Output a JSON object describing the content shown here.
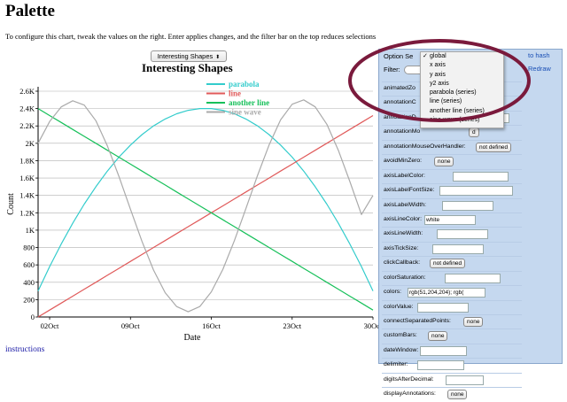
{
  "page": {
    "title": "Palette",
    "description": "To configure this chart, tweak the values on the right. Enter applies changes, and the filter bar on the top reduces selections",
    "instructions_link": "instructions"
  },
  "chart_selector": {
    "selected": "Interesting Shapes"
  },
  "panel": {
    "option_set_label": "Option Se",
    "filter_label": "Filter:",
    "to_hash": "to hash",
    "redraw": "Redraw",
    "rows": [
      {
        "name": "animatedZo",
        "field": "",
        "type": "none"
      },
      {
        "name": "annotationC",
        "field": "",
        "type": "none"
      },
      {
        "name": "annotationD",
        "field": "",
        "type": "field"
      },
      {
        "name": "annotationMo",
        "field": "d",
        "type": "button"
      },
      {
        "name": "annotationMouseOverHandler:",
        "field": "not defined",
        "type": "button"
      },
      {
        "name": "avoidMinZero:",
        "field": "none",
        "type": "button"
      },
      {
        "name": "axisLabelColor:",
        "field": "",
        "type": "field"
      },
      {
        "name": "axisLabelFontSize:",
        "field": "",
        "type": "field"
      },
      {
        "name": "axisLabelWidth:",
        "field": "",
        "type": "field"
      },
      {
        "name": "axisLineColor:",
        "field": "white",
        "type": "field"
      },
      {
        "name": "axisLineWidth:",
        "field": "",
        "type": "field"
      },
      {
        "name": "axisTickSize:",
        "field": "",
        "type": "field"
      },
      {
        "name": "clickCallback:",
        "field": "not defined",
        "type": "button"
      },
      {
        "name": "colorSaturation:",
        "field": "",
        "type": "field"
      },
      {
        "name": "colors:",
        "field": "rgb(51,204,204); rgb(",
        "type": "field"
      },
      {
        "name": "colorValue:",
        "field": "",
        "type": "field"
      },
      {
        "name": "connectSeparatedPoints:",
        "field": "none",
        "type": "button"
      },
      {
        "name": "customBars:",
        "field": "none",
        "type": "button"
      },
      {
        "name": "dateWindow:",
        "field": "",
        "type": "field"
      },
      {
        "name": "delimiter:",
        "field": "",
        "type": "field"
      },
      {
        "name": "digitsAfterDecimal:",
        "field": "",
        "type": "field"
      },
      {
        "name": "displayAnnotations:",
        "field": "none",
        "type": "button"
      }
    ]
  },
  "option_menu": {
    "items": [
      {
        "label": "global",
        "checked": true
      },
      {
        "label": "x axis",
        "checked": false
      },
      {
        "label": "y axis",
        "checked": false
      },
      {
        "label": "y2 axis",
        "checked": false
      },
      {
        "label": "parabola (series)",
        "checked": false
      },
      {
        "label": "line (series)",
        "checked": false
      },
      {
        "label": "another line (series)",
        "checked": false
      },
      {
        "label": "sine wave (series)",
        "checked": false
      }
    ],
    "check_glyph": "✓"
  },
  "colors": {
    "parabola": "#33cccc",
    "line": "#e05a5a",
    "another_line": "#17c05a",
    "sine_wave": "#aaaaaa",
    "highlight_ellipse": "#7a1a3c",
    "link": "#1a4fb5"
  },
  "chart_data": {
    "type": "line",
    "title": "Interesting Shapes",
    "xlabel": "Date",
    "ylabel": "Count",
    "x_ticks": [
      "02Oct",
      "09Oct",
      "16Oct",
      "23Oct",
      "30Oct"
    ],
    "y_ticks": [
      "0",
      "200",
      "400",
      "600",
      "800",
      "1K",
      "1.2K",
      "1.4K",
      "1.6K",
      "1.8K",
      "2K",
      "2.2K",
      "2.4K",
      "2.6K"
    ],
    "ylim": [
      0,
      2600
    ],
    "xlim": [
      1,
      30
    ],
    "legend_position": "top-right",
    "x": [
      1,
      2,
      3,
      4,
      5,
      6,
      7,
      8,
      9,
      10,
      11,
      12,
      13,
      14,
      15,
      16,
      17,
      18,
      19,
      20,
      21,
      22,
      23,
      24,
      25,
      26,
      27,
      28,
      29,
      30
    ],
    "series": [
      {
        "name": "parabola",
        "values": [
          300,
          580,
          840,
          1080,
          1300,
          1500,
          1680,
          1840,
          1980,
          2100,
          2200,
          2280,
          2340,
          2380,
          2400,
          2400,
          2380,
          2340,
          2280,
          2200,
          2100,
          1980,
          1840,
          1680,
          1500,
          1300,
          1080,
          840,
          580,
          300
        ]
      },
      {
        "name": "line",
        "values": [
          0,
          80,
          160,
          240,
          320,
          400,
          480,
          560,
          640,
          720,
          800,
          880,
          960,
          1040,
          1120,
          1200,
          1280,
          1360,
          1440,
          1520,
          1600,
          1680,
          1760,
          1840,
          1920,
          2000,
          2080,
          2160,
          2240,
          2320
        ]
      },
      {
        "name": "another line",
        "values": [
          2400,
          2320,
          2240,
          2160,
          2080,
          2000,
          1920,
          1840,
          1760,
          1680,
          1600,
          1520,
          1440,
          1360,
          1280,
          1200,
          1120,
          1040,
          960,
          880,
          800,
          720,
          640,
          560,
          480,
          400,
          320,
          240,
          160,
          80
        ]
      },
      {
        "name": "sine wave",
        "values": [
          2000,
          2250,
          2420,
          2490,
          2440,
          2260,
          1970,
          1620,
          1240,
          870,
          540,
          280,
          120,
          60,
          120,
          290,
          550,
          880,
          1250,
          1630,
          1980,
          2270,
          2450,
          2500,
          2420,
          2220,
          1920,
          1560,
          1180,
          1400
        ]
      }
    ]
  }
}
